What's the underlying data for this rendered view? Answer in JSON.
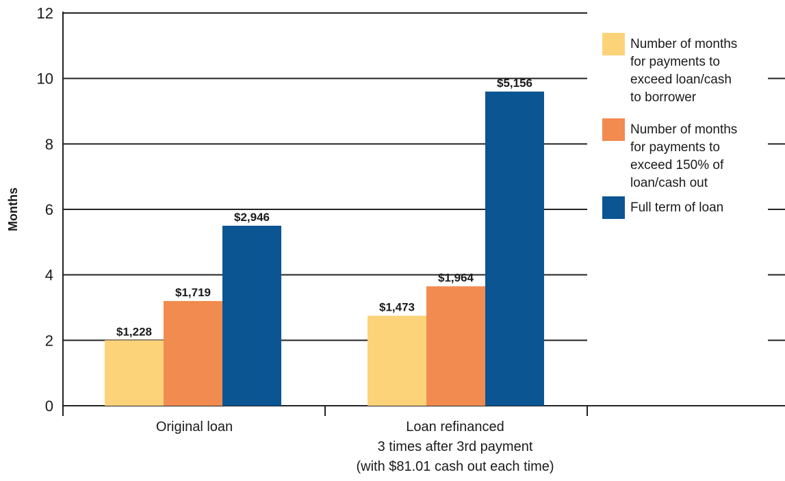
{
  "chart_data": {
    "type": "bar",
    "ylabel": "Months",
    "ylim": [
      0,
      12
    ],
    "yticks": [
      "0",
      "2",
      "4",
      "6",
      "8",
      "10",
      "12"
    ],
    "grid": true,
    "legend_position": "right",
    "categories": [
      [
        "Original loan"
      ],
      [
        "Loan refinanced",
        "3 times after 3rd payment",
        "(with $81.01 cash out each time)"
      ]
    ],
    "series": [
      {
        "name": "Number of months for payments to exceed loan/cash to borrower",
        "legend_lines": [
          "Number of months",
          "for payments to",
          "exceed loan/cash",
          "to borrower"
        ],
        "color": "#fdd37a",
        "values": [
          2.0,
          2.75
        ],
        "labels": [
          "$1,228",
          "$1,473"
        ]
      },
      {
        "name": "Number of months for payments to exceed 150% of loan/cash out",
        "legend_lines": [
          "Number of months",
          "for payments to",
          "exceed 150% of",
          "loan/cash out"
        ],
        "color": "#f28b50",
        "values": [
          3.2,
          3.65
        ],
        "labels": [
          "$1,719",
          "$1,964"
        ]
      },
      {
        "name": "Full term of loan",
        "legend_lines": [
          "Full term of loan"
        ],
        "color": "#0a5592",
        "values": [
          5.5,
          9.6
        ],
        "labels": [
          "$2,946",
          "$5,156"
        ]
      }
    ]
  }
}
